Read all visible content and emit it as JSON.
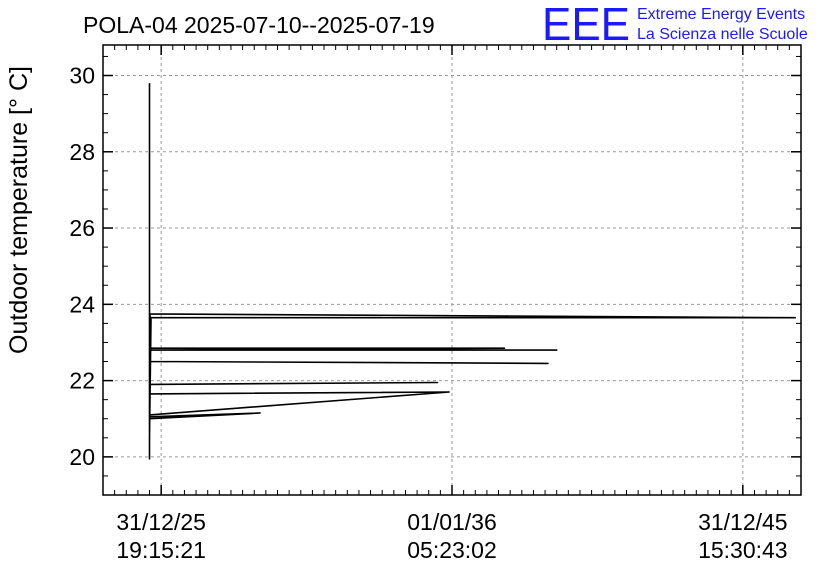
{
  "colors": {
    "background": "#ffffff",
    "axis": "#000000",
    "grid": "#999999",
    "data": "#000000",
    "logo": "#1a1aff"
  },
  "logo": {
    "mark": "EEE",
    "line1": "Extreme Energy Events",
    "line2": "La Scienza nelle Scuole"
  },
  "chart_data": {
    "type": "line",
    "title": "POLA-04 2025-07-10--2025-07-19",
    "ylabel": "Outdoor temperature [° C]",
    "xlabel": "",
    "xlim": [
      0,
      24
    ],
    "ylim": [
      19,
      30.8
    ],
    "grid": true,
    "yticks": [
      20,
      22,
      24,
      26,
      28,
      30
    ],
    "xticks": [
      {
        "value": 2,
        "date": "31/12/25",
        "time": "19:15:21"
      },
      {
        "value": 12,
        "date": "01/01/36",
        "time": "05:23:02"
      },
      {
        "value": 22,
        "date": "31/12/45",
        "time": "15:30:43"
      }
    ],
    "series": [
      {
        "x": [
          1.6,
          1.6,
          1.6,
          1.6,
          1.65,
          1.6,
          1.6,
          23.8,
          1.6,
          1.6,
          1.6,
          1.6,
          15.6,
          1.6,
          1.6,
          13.8,
          1.6,
          1.6,
          1.6,
          15.3,
          1.6,
          1.6,
          1.6,
          1.6,
          11.5,
          1.6,
          1.6,
          11.9,
          1.6,
          1.6,
          5.4,
          1.6,
          1.6,
          1.6,
          1.6
        ],
        "y": [
          29.8,
          19.95,
          24.7,
          20.5,
          23.6,
          23.75,
          23.75,
          23.65,
          23.65,
          23.1,
          22.95,
          22.8,
          22.8,
          22.8,
          22.85,
          22.85,
          22.8,
          22.6,
          22.5,
          22.45,
          22.5,
          22.1,
          21.95,
          21.9,
          21.95,
          21.9,
          21.65,
          21.7,
          21.1,
          21.05,
          21.15,
          21.0,
          20.95,
          21.15,
          20.6
        ]
      }
    ]
  }
}
